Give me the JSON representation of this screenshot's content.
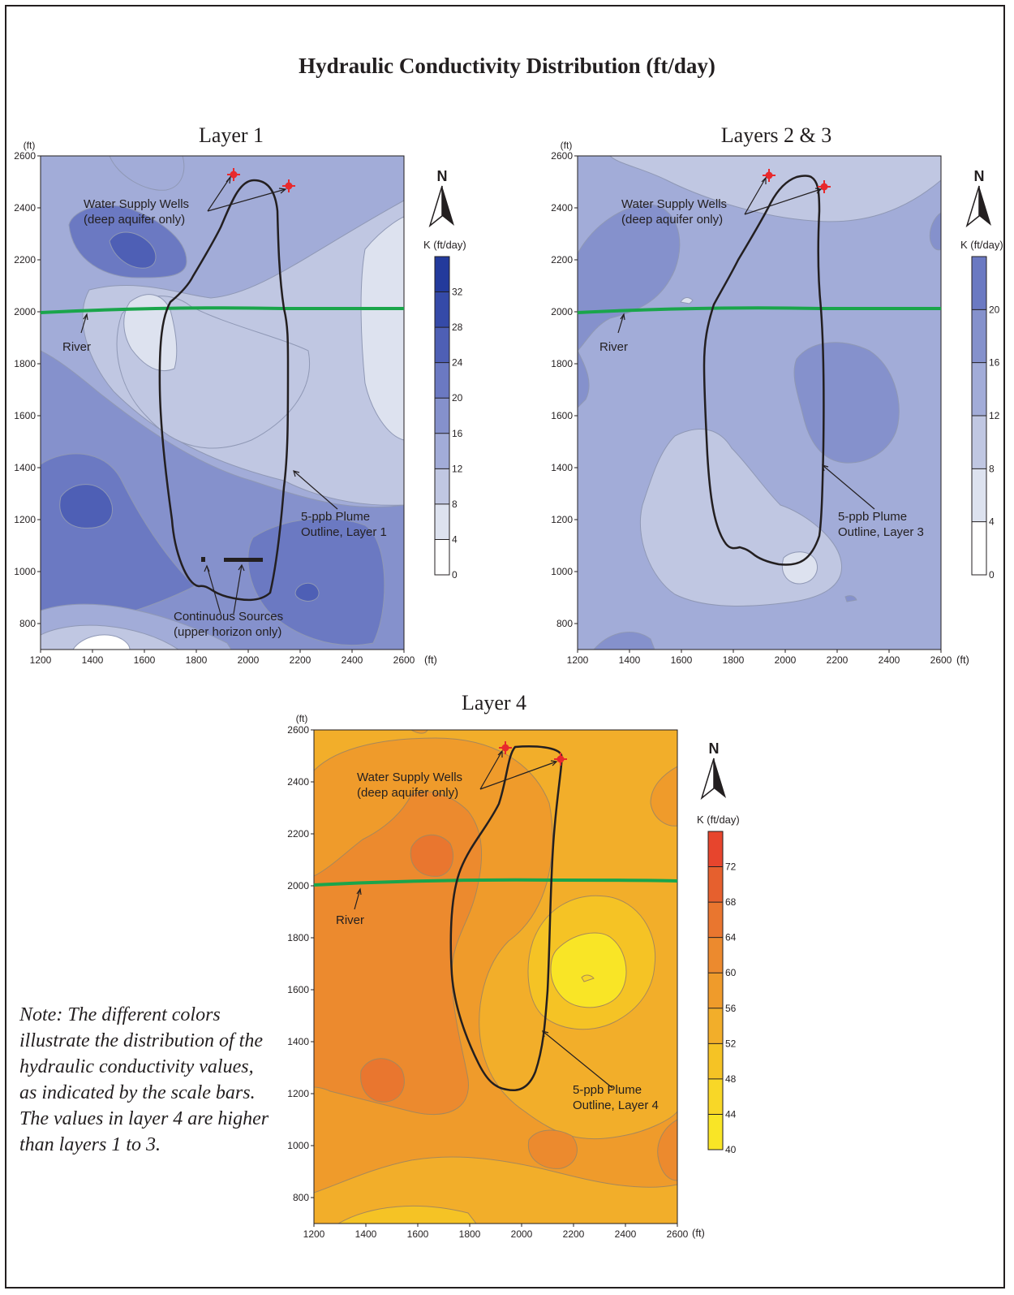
{
  "title": "Hydraulic Conductivity Distribution (ft/day)",
  "note": "Note:  The different colors illustrate the distribution of the hydraulic conductivity values, as indicated by the scale bars.  The values in layer 4 are higher than layers 1 to 3.",
  "axis_unit": "(ft)",
  "x_ticks": [
    "1200",
    "1400",
    "1600",
    "1800",
    "2000",
    "2200",
    "2400",
    "2600"
  ],
  "y_ticks": [
    "2600",
    "2400",
    "2200",
    "2000",
    "1800",
    "1600",
    "1400",
    "1200",
    "1000",
    "800"
  ],
  "north_label": "N",
  "colorbar_title": "K (ft/day)",
  "colors": {
    "blue_ramp": [
      "#ffffff",
      "#dde2ef",
      "#c0c7e2",
      "#a2acd8",
      "#8591cc",
      "#6b79c2",
      "#4e5fb5",
      "#354aa8",
      "#233a9c"
    ],
    "orange_ramp": [
      "#f9e526",
      "#f8d727",
      "#f5c325",
      "#f2ae2a",
      "#ef9b2b",
      "#ec8a2e",
      "#e9762f",
      "#e6602e",
      "#e7452d",
      "#e82b2c"
    ],
    "river": "#1aa54b",
    "plume": "#231f20",
    "well": "#e8292c"
  },
  "panels": [
    {
      "title": "Layer 1",
      "colorbar_ticks": [
        "0",
        "4",
        "8",
        "12",
        "16",
        "20",
        "24",
        "28",
        "32"
      ],
      "labels": {
        "wells": [
          "Water Supply Wells",
          "(deep aquifer only)"
        ],
        "river": "River",
        "plume": [
          "5-ppb Plume",
          "Outline, Layer 1"
        ],
        "sources": [
          "Continuous Sources",
          "(upper horizon only)"
        ]
      }
    },
    {
      "title": "Layers 2 & 3",
      "colorbar_ticks": [
        "0",
        "4",
        "8",
        "12",
        "16",
        "20"
      ],
      "labels": {
        "wells": [
          "Water Supply Wells",
          "(deep aquifer only)"
        ],
        "river": "River",
        "plume": [
          "5-ppb Plume",
          "Outline, Layer 3"
        ]
      }
    },
    {
      "title": "Layer 4",
      "colorbar_ticks": [
        "40",
        "44",
        "48",
        "52",
        "56",
        "60",
        "64",
        "68",
        "72"
      ],
      "labels": {
        "wells": [
          "Water Supply Wells",
          "(deep aquifer only)"
        ],
        "river": "River",
        "plume": [
          "5-ppb Plume",
          "Outline, Layer 4"
        ]
      }
    }
  ]
}
